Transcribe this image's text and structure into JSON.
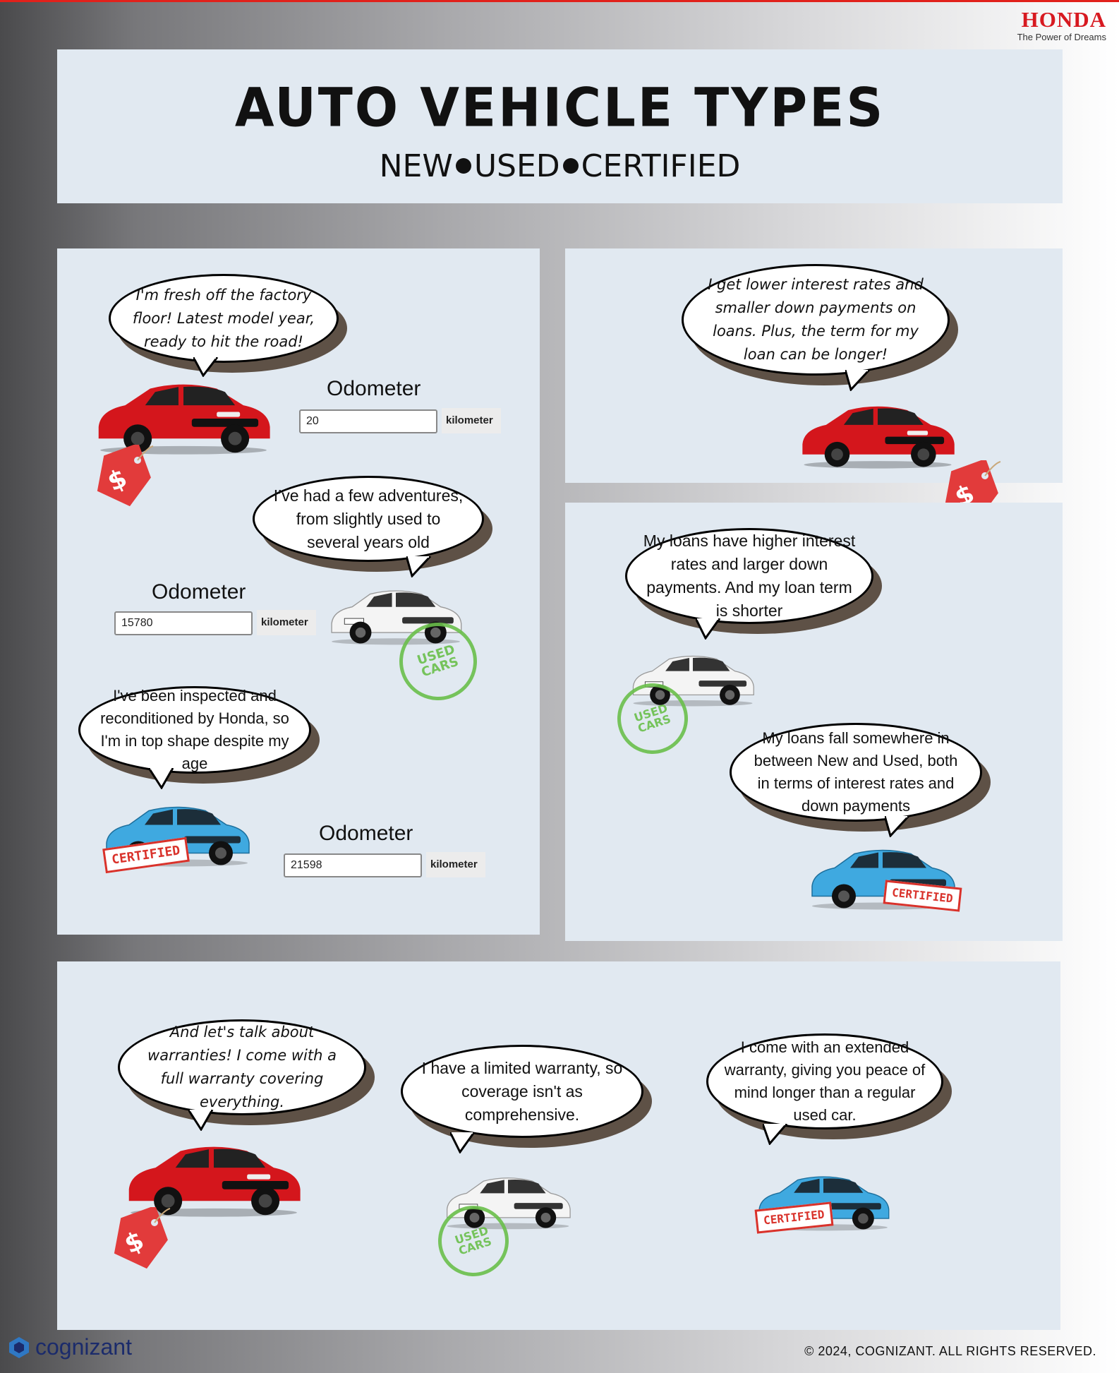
{
  "brand": {
    "name": "HONDA",
    "tagline": "The Power of Dreams"
  },
  "header": {
    "title": "AUTO VEHICLE TYPES",
    "subtitle": {
      "new": "NEW",
      "used": "USED",
      "certified": "CERTIFIED"
    }
  },
  "panel1": {
    "new": {
      "quote": "I'm fresh off the factory floor! Latest model year, ready to hit the road!",
      "odometer_label": "Odometer",
      "odometer_value": "20",
      "unit": "kilometer"
    },
    "used": {
      "quote": "I’ve had a few adventures, from slightly used to several years old",
      "odometer_label": "Odometer",
      "odometer_value": "15780",
      "unit": "kilometer",
      "stamp": "USED CARS"
    },
    "certified": {
      "quote": "I've been inspected and reconditioned by Honda, so I'm in top shape despite my age",
      "odometer_label": "Odometer",
      "odometer_value": "21598",
      "unit": "kilometer",
      "stamp": "CERTIFIED"
    }
  },
  "panel2": {
    "quote": "I get lower interest rates and smaller down payments on loans. Plus, the term for my loan can be longer!"
  },
  "panel3": {
    "used_quote": "My loans have higher interest rates and larger down payments. And my loan term is shorter",
    "certified_quote": "My loans fall somewhere in between New and Used, both in terms of interest rates and down payments"
  },
  "panel4": {
    "new_quote": "And let's talk about warranties! I come with a full warranty covering everything.",
    "used_quote": "I have a limited warranty, so coverage isn't as comprehensive.",
    "certified_quote": "I come with an extended warranty, giving you peace of mind longer than a regular used car."
  },
  "stamps": {
    "used": "USED CARS",
    "certified": "CERTIFIED"
  },
  "footer": {
    "logo": "cognizant",
    "copyright": "© 2024, COGNIZANT. ALL RIGHTS RESERVED."
  },
  "colors": {
    "honda_red": "#d71920",
    "panel": "#e1e9f1",
    "red_car": "#d4161c",
    "blue_car": "#3fa9e0",
    "stamp_green": "#6abf4b",
    "tag_red": "#e23b3b"
  }
}
